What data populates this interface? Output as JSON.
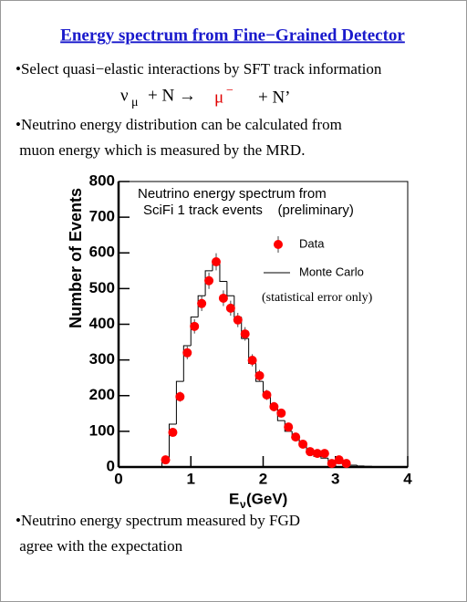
{
  "header": {
    "title": "Energy spectrum from Fine−Grained Detector"
  },
  "bullets": [
    "•Select quasi−elastic interactions by  SFT track information",
    "•Neutrino energy distribution can be calculated from",
    " muon energy which is measured by the MRD."
  ],
  "equation": {
    "nu": "ν",
    "nu_sub": "μ",
    "mid": "+ N →",
    "muon": "μ",
    "muon_sup": "−",
    "end": "+ N’"
  },
  "footer": [
    "•Neutrino energy spectrum measured by FGD",
    " agree with the expectation"
  ],
  "chart_data": {
    "type": "scatter",
    "title_lines": [
      "Neutrino energy spectrum from",
      "SciFi 1 track events    (preliminary)"
    ],
    "note": "(statistical error only)",
    "ylabel": "Number of Events",
    "xlabel": {
      "main": "E",
      "sub": "ν",
      "unit": "(GeV)"
    },
    "xlim": [
      0,
      4
    ],
    "xticks": [
      0,
      1,
      2,
      3,
      4
    ],
    "ylim": [
      0,
      800
    ],
    "yticks": [
      0,
      100,
      200,
      300,
      400,
      500,
      600,
      700,
      800
    ],
    "series": [
      {
        "name": "Data",
        "type": "errorbar",
        "color": "#ff0000",
        "x": [
          0.65,
          0.75,
          0.85,
          0.95,
          1.05,
          1.15,
          1.25,
          1.35,
          1.45,
          1.55,
          1.65,
          1.75,
          1.85,
          1.95,
          2.05,
          2.15,
          2.25,
          2.35,
          2.45,
          2.55,
          2.65,
          2.75,
          2.85,
          2.95,
          3.05,
          3.15
        ],
        "values": [
          20,
          97,
          197,
          320,
          394,
          458,
          522,
          575,
          473,
          445,
          412,
          373,
          299,
          256,
          202,
          169,
          151,
          112,
          84,
          64,
          43,
          38,
          38,
          10,
          20,
          10
        ],
        "errors": [
          5,
          10,
          14,
          18,
          20,
          21,
          23,
          24,
          22,
          21,
          20,
          19,
          17,
          16,
          14,
          13,
          12,
          11,
          9,
          8,
          7,
          6,
          6,
          3,
          4,
          3
        ]
      },
      {
        "name": "Monte Carlo",
        "type": "step",
        "color": "#000000",
        "bins": [
          0.6,
          0.7,
          0.8,
          0.9,
          1.0,
          1.1,
          1.2,
          1.3,
          1.4,
          1.5,
          1.6,
          1.7,
          1.8,
          1.9,
          2.0,
          2.1,
          2.2,
          2.3,
          2.4,
          2.5,
          2.6,
          2.7,
          2.8,
          2.9,
          3.0,
          3.1,
          3.2,
          3.3,
          3.4,
          3.5
        ],
        "values": [
          15,
          120,
          240,
          340,
          420,
          480,
          550,
          580,
          520,
          480,
          420,
          360,
          290,
          240,
          200,
          170,
          130,
          100,
          80,
          60,
          45,
          30,
          25,
          15,
          10,
          8,
          5,
          3,
          2
        ]
      }
    ]
  }
}
